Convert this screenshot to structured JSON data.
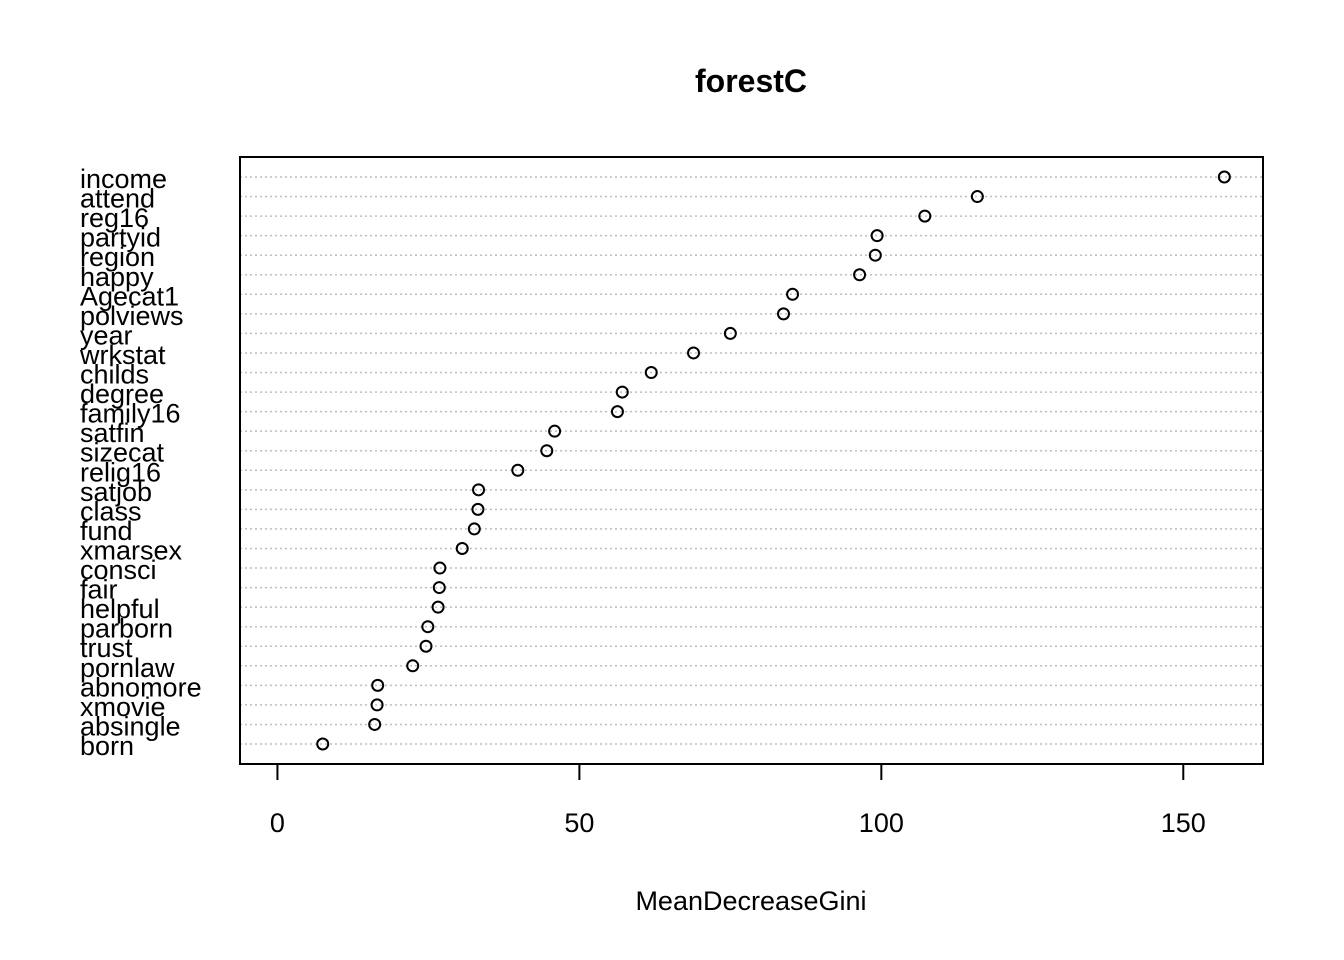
{
  "chart_data": {
    "type": "scatter",
    "title": "forestC",
    "xlabel": "MeanDecreaseGini",
    "ylabel": "",
    "xlim": [
      -6.2,
      163.2
    ],
    "xticks": [
      "0",
      "50",
      "100",
      "150"
    ],
    "xtick_values": [
      0,
      50,
      100,
      150
    ],
    "grid": "dotted horizontal lines per variable",
    "marker": "open circle",
    "categories": [
      "income",
      "attend",
      "reg16",
      "partyid",
      "region",
      "happy",
      "Agecat1",
      "polviews",
      "year",
      "wrkstat",
      "childs",
      "degree",
      "family16",
      "satfin",
      "sizecat",
      "relig16",
      "satjob",
      "class",
      "fund",
      "xmarsex",
      "consci",
      "fair",
      "helpful",
      "parborn",
      "trust",
      "pornlaw",
      "abnomore",
      "xmovie",
      "absingle",
      "born"
    ],
    "values": [
      156.8,
      115.9,
      107.2,
      99.3,
      99.0,
      96.4,
      85.3,
      83.8,
      75.0,
      68.9,
      61.9,
      57.1,
      56.3,
      45.9,
      44.6,
      39.8,
      33.3,
      33.2,
      32.6,
      30.6,
      26.9,
      26.8,
      26.6,
      24.9,
      24.6,
      22.4,
      16.6,
      16.5,
      16.1,
      7.5
    ]
  }
}
